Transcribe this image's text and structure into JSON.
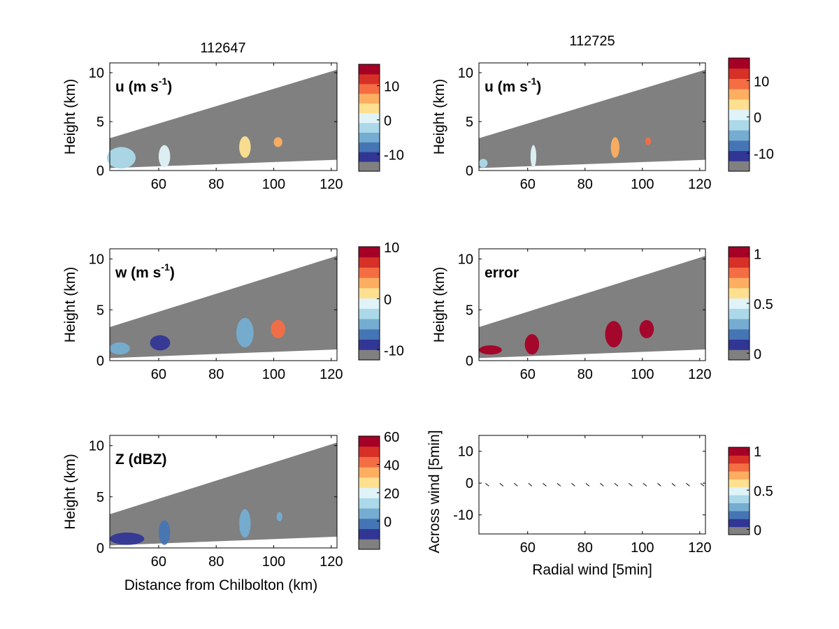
{
  "figure": {
    "titles": [
      "112647",
      "112725"
    ],
    "x_tick_labels": [
      "60",
      "80",
      "100",
      "120"
    ],
    "y_tick_labels": [
      "0",
      "5",
      "10"
    ],
    "y_label": "Height (km)",
    "x_label": "Distance from Chilbolton (km)",
    "quiver_x_label": "Radial wind [5min]",
    "quiver_y_label": "Across wind [5min]",
    "quiver_y_tick_labels": [
      "10",
      "0",
      "-10"
    ],
    "panel_labels": {
      "u_left": "u (m s",
      "u_right": "u (m s",
      "w": "w (m s",
      "error": "error",
      "z": "Z (dBZ)",
      "sup": "-1",
      "close": ")"
    },
    "colorbar_labels": {
      "u": [
        "10",
        "0",
        "-10"
      ],
      "w": [
        "10",
        "0",
        "-10"
      ],
      "error": [
        "1",
        "0.5",
        "0"
      ],
      "z": [
        "60",
        "40",
        "20",
        "0"
      ],
      "quiver": [
        "1",
        "0.5",
        "0"
      ]
    },
    "colormap": [
      "#808080",
      "#313695",
      "#4575b4",
      "#74add1",
      "#abd9e9",
      "#e0f3f8",
      "#fee090",
      "#fdae61",
      "#f46d43",
      "#d73027",
      "#a50026"
    ],
    "background_color": "#808080"
  },
  "chart_data": [
    {
      "type": "heatmap",
      "title": "112647",
      "label": "u (m s-1)",
      "ylabel": "Height (km)",
      "xlim": [
        43,
        122
      ],
      "ylim": [
        0,
        11
      ],
      "cbar_ticks": [
        10,
        0,
        -10
      ],
      "features": [
        {
          "x": [
            42,
            52
          ],
          "y": [
            0.2,
            2.4
          ],
          "value": -3
        },
        {
          "x": [
            60,
            64
          ],
          "y": [
            0.3,
            2.6
          ],
          "value": -2
        },
        {
          "x": [
            88,
            92
          ],
          "y": [
            1.3,
            3.5
          ],
          "value": 2
        },
        {
          "x": [
            100,
            103
          ],
          "y": [
            2.4,
            3.4
          ],
          "value": 4
        }
      ]
    },
    {
      "type": "heatmap",
      "title": "112725",
      "label": "u (m s-1)",
      "xlim": [
        43,
        122
      ],
      "ylim": [
        0,
        11
      ],
      "cbar_ticks": [
        10,
        0,
        -10
      ],
      "features": [
        {
          "x": [
            43,
            46
          ],
          "y": [
            0.3,
            1.2
          ],
          "value": -4
        },
        {
          "x": [
            61,
            63
          ],
          "y": [
            0.3,
            2.6
          ],
          "value": -2
        },
        {
          "x": [
            89,
            92
          ],
          "y": [
            1.3,
            3.4
          ],
          "value": 3
        },
        {
          "x": [
            101,
            103
          ],
          "y": [
            2.6,
            3.4
          ],
          "value": 5
        }
      ]
    },
    {
      "type": "heatmap",
      "label": "w (m s-1)",
      "ylabel": "Height (km)",
      "xlim": [
        43,
        122
      ],
      "ylim": [
        0,
        11
      ],
      "cbar_ticks": [
        10,
        0,
        -10
      ],
      "features": [
        {
          "x": [
            43,
            50
          ],
          "y": [
            0.6,
            1.8
          ],
          "value": -5
        },
        {
          "x": [
            57,
            64
          ],
          "y": [
            1.0,
            2.5
          ],
          "value": -9
        },
        {
          "x": [
            87,
            93
          ],
          "y": [
            1.3,
            4.2
          ],
          "value": -6
        },
        {
          "x": [
            99,
            104
          ],
          "y": [
            2.2,
            4.0
          ],
          "value": 5
        }
      ]
    },
    {
      "type": "heatmap",
      "label": "error",
      "ylabel": "Height (km)",
      "xlim": [
        43,
        122
      ],
      "ylim": [
        0,
        11
      ],
      "cbar_ticks": [
        1,
        0.5,
        0
      ],
      "features": [
        {
          "x": [
            43,
            51
          ],
          "y": [
            0.6,
            1.5
          ],
          "value": 1
        },
        {
          "x": [
            59,
            64
          ],
          "y": [
            0.6,
            2.6
          ],
          "value": 1
        },
        {
          "x": [
            87,
            93
          ],
          "y": [
            1.3,
            3.9
          ],
          "value": 1
        },
        {
          "x": [
            99,
            104
          ],
          "y": [
            2.2,
            4.0
          ],
          "value": 1
        }
      ]
    },
    {
      "type": "heatmap",
      "label": "Z (dBZ)",
      "xlabel": "Distance from Chilbolton (km)",
      "ylabel": "Height (km)",
      "xlim": [
        43,
        122
      ],
      "ylim": [
        0,
        11
      ],
      "cbar_ticks": [
        60,
        40,
        20,
        0
      ],
      "features": [
        {
          "x": [
            43,
            55
          ],
          "y": [
            0.3,
            1.5
          ],
          "value": -5
        },
        {
          "x": [
            60,
            64
          ],
          "y": [
            0.3,
            2.7
          ],
          "value": 5
        },
        {
          "x": [
            88,
            92
          ],
          "y": [
            1.0,
            3.8
          ],
          "value": 10
        },
        {
          "x": [
            101,
            103
          ],
          "y": [
            2.6,
            3.5
          ],
          "value": 10
        }
      ]
    },
    {
      "type": "scatter",
      "xlabel": "Radial wind [5min]",
      "ylabel": "Across wind [5min]",
      "xlim": [
        43,
        122
      ],
      "ylim": [
        -16,
        15
      ],
      "cbar_ticks": [
        1,
        0.5,
        0
      ],
      "x": [
        46,
        51,
        56,
        61,
        66,
        71,
        76,
        81,
        86,
        91,
        96,
        101,
        106,
        111,
        116,
        121
      ],
      "y": [
        -0.5,
        -0.5,
        -0.5,
        -0.5,
        -0.5,
        -0.5,
        -0.5,
        -0.5,
        -0.5,
        -0.5,
        -0.5,
        -0.5,
        -0.5,
        -0.5,
        -0.5,
        -0.5
      ]
    }
  ]
}
